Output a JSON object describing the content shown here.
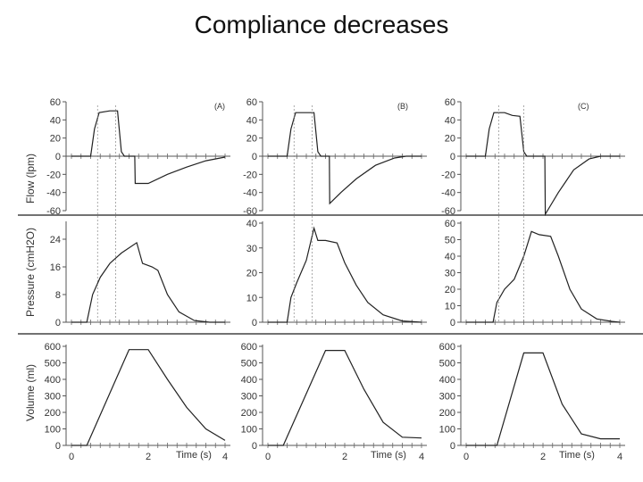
{
  "title": "Compliance decreases",
  "columns": [
    {
      "label": "(A)"
    },
    {
      "label": "(B)"
    },
    {
      "label": "(C)"
    }
  ],
  "x_axis": {
    "label": "Time (s)",
    "range": [
      0,
      4
    ],
    "ticks": [
      0,
      2,
      4
    ]
  },
  "rows": [
    {
      "key": "flow",
      "ylabel": "Flow (lpm)",
      "range": [
        -60,
        60
      ],
      "ticks": [
        60,
        40,
        20,
        0,
        -20,
        -40,
        -60
      ]
    },
    {
      "key": "pressure",
      "ylabel": "Pressure (cmH2O)",
      "note": "per-column y scales",
      "ranges": [
        [
          0,
          28
        ],
        [
          0,
          40
        ],
        [
          0,
          60
        ]
      ],
      "ticks": [
        [
          24,
          16,
          8,
          0
        ],
        [
          40,
          30,
          20,
          10,
          0
        ],
        [
          60,
          50,
          40,
          30,
          20,
          10,
          0
        ]
      ]
    },
    {
      "key": "volume",
      "ylabel": "Volume (ml)",
      "range": [
        0,
        600
      ],
      "ticks": [
        600,
        500,
        400,
        300,
        200,
        100,
        0
      ]
    }
  ],
  "chart_data": {
    "type": "line",
    "title": "Compliance decreases",
    "xlabel": "Time (s)",
    "xlim": [
      0,
      4
    ],
    "panels": [
      {
        "column": "(A)",
        "signal": "flow",
        "ylim": [
          -60,
          60
        ],
        "points": [
          [
            0,
            0
          ],
          [
            0.5,
            0
          ],
          [
            0.6,
            30
          ],
          [
            0.72,
            48
          ],
          [
            1.0,
            50
          ],
          [
            1.2,
            50
          ],
          [
            1.3,
            5
          ],
          [
            1.38,
            0
          ],
          [
            1.65,
            0
          ],
          [
            1.66,
            -30
          ],
          [
            2.0,
            -30
          ],
          [
            2.5,
            -20
          ],
          [
            3.0,
            -12
          ],
          [
            3.5,
            -5
          ],
          [
            4.0,
            -1
          ]
        ]
      },
      {
        "column": "(B)",
        "signal": "flow",
        "ylim": [
          -60,
          60
        ],
        "points": [
          [
            0,
            0
          ],
          [
            0.5,
            0
          ],
          [
            0.6,
            30
          ],
          [
            0.72,
            48
          ],
          [
            1.0,
            48
          ],
          [
            1.2,
            48
          ],
          [
            1.3,
            5
          ],
          [
            1.38,
            0
          ],
          [
            1.6,
            0
          ],
          [
            1.61,
            -52
          ],
          [
            1.9,
            -40
          ],
          [
            2.3,
            -25
          ],
          [
            2.8,
            -10
          ],
          [
            3.3,
            -2
          ],
          [
            3.6,
            0
          ],
          [
            4.0,
            0
          ]
        ]
      },
      {
        "column": "(C)",
        "signal": "flow",
        "ylim": [
          -60,
          60
        ],
        "points": [
          [
            0,
            0
          ],
          [
            0.5,
            0
          ],
          [
            0.6,
            30
          ],
          [
            0.72,
            48
          ],
          [
            1.0,
            48
          ],
          [
            1.2,
            45
          ],
          [
            1.4,
            44
          ],
          [
            1.5,
            5
          ],
          [
            1.58,
            0
          ],
          [
            2.05,
            0
          ],
          [
            2.06,
            -65
          ],
          [
            2.4,
            -40
          ],
          [
            2.8,
            -15
          ],
          [
            3.2,
            -3
          ],
          [
            3.5,
            0
          ],
          [
            4.0,
            0
          ]
        ]
      },
      {
        "column": "(A)",
        "signal": "pressure",
        "ylim": [
          0,
          28
        ],
        "points": [
          [
            0,
            0
          ],
          [
            0.4,
            0
          ],
          [
            0.55,
            8
          ],
          [
            0.75,
            13
          ],
          [
            1.0,
            17
          ],
          [
            1.3,
            20
          ],
          [
            1.7,
            23
          ],
          [
            1.85,
            17
          ],
          [
            2.1,
            16
          ],
          [
            2.25,
            15
          ],
          [
            2.5,
            8
          ],
          [
            2.8,
            3
          ],
          [
            3.2,
            0.5
          ],
          [
            3.6,
            0
          ],
          [
            4.0,
            0
          ]
        ]
      },
      {
        "column": "(B)",
        "signal": "pressure",
        "ylim": [
          0,
          40
        ],
        "points": [
          [
            0,
            0
          ],
          [
            0.5,
            0
          ],
          [
            0.6,
            10
          ],
          [
            0.75,
            16
          ],
          [
            1.0,
            25
          ],
          [
            1.2,
            38
          ],
          [
            1.3,
            33
          ],
          [
            1.5,
            33
          ],
          [
            1.8,
            32
          ],
          [
            2.0,
            24
          ],
          [
            2.3,
            15
          ],
          [
            2.6,
            8
          ],
          [
            3.0,
            3
          ],
          [
            3.5,
            0.5
          ],
          [
            4.0,
            0
          ]
        ]
      },
      {
        "column": "(C)",
        "signal": "pressure",
        "ylim": [
          0,
          60
        ],
        "points": [
          [
            0,
            0
          ],
          [
            0.7,
            0
          ],
          [
            0.8,
            12
          ],
          [
            1.0,
            20
          ],
          [
            1.25,
            26
          ],
          [
            1.5,
            40
          ],
          [
            1.7,
            55
          ],
          [
            1.9,
            53
          ],
          [
            2.2,
            52
          ],
          [
            2.4,
            40
          ],
          [
            2.7,
            20
          ],
          [
            3.0,
            8
          ],
          [
            3.4,
            2
          ],
          [
            3.8,
            0.5
          ],
          [
            4.0,
            0
          ]
        ]
      },
      {
        "column": "(A)",
        "signal": "volume",
        "ylim": [
          0,
          600
        ],
        "points": [
          [
            0,
            0
          ],
          [
            0.4,
            0
          ],
          [
            1.5,
            580
          ],
          [
            2.0,
            580
          ],
          [
            2.5,
            400
          ],
          [
            3.0,
            230
          ],
          [
            3.5,
            100
          ],
          [
            4.0,
            30
          ]
        ]
      },
      {
        "column": "(B)",
        "signal": "volume",
        "ylim": [
          0,
          600
        ],
        "points": [
          [
            0,
            0
          ],
          [
            0.4,
            0
          ],
          [
            1.5,
            575
          ],
          [
            2.0,
            575
          ],
          [
            2.5,
            340
          ],
          [
            3.0,
            140
          ],
          [
            3.5,
            50
          ],
          [
            4.0,
            45
          ]
        ]
      },
      {
        "column": "(C)",
        "signal": "volume",
        "ylim": [
          0,
          600
        ],
        "points": [
          [
            0,
            0
          ],
          [
            0.8,
            0
          ],
          [
            1.5,
            560
          ],
          [
            2.0,
            560
          ],
          [
            2.5,
            250
          ],
          [
            3.0,
            70
          ],
          [
            3.5,
            40
          ],
          [
            4.0,
            40
          ]
        ]
      }
    ]
  }
}
